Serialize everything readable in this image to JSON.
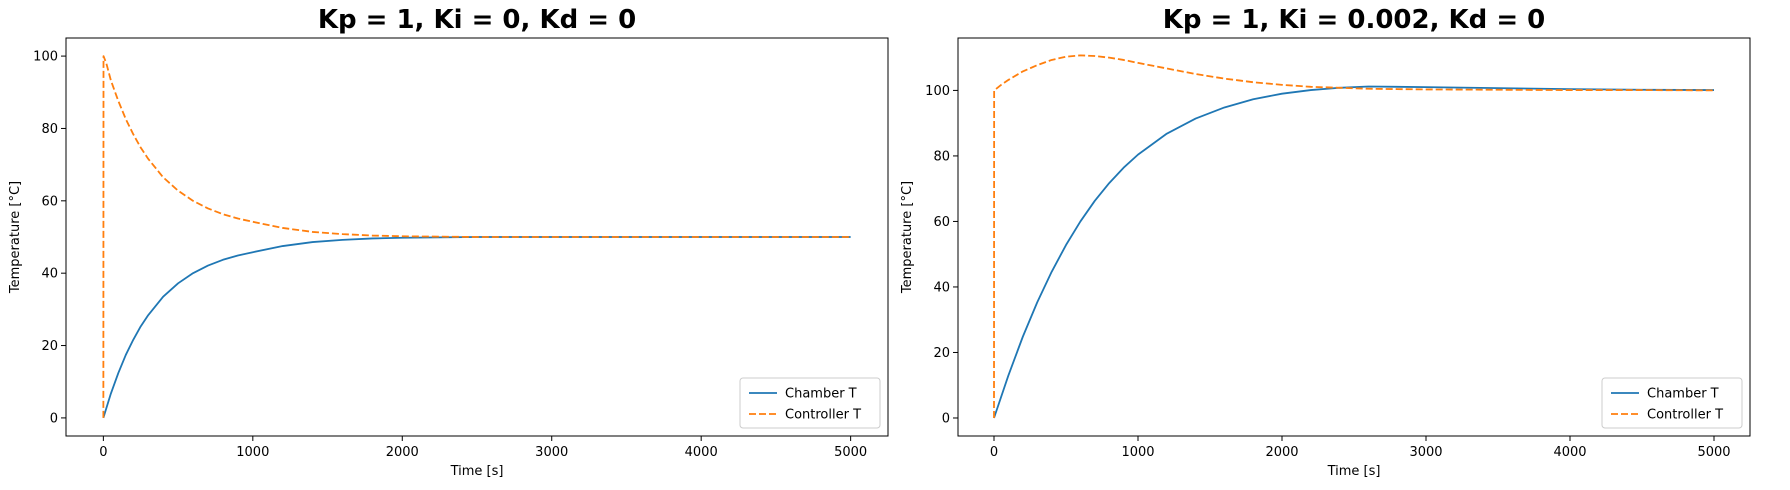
{
  "chart_data": [
    {
      "type": "line",
      "title": "Kp = 1, Ki = 0, Kd = 0",
      "xlabel": "Time [s]",
      "ylabel": "Temperature [°C]",
      "xlim": [
        -250,
        5250
      ],
      "ylim": [
        -5,
        105
      ],
      "xticks": [
        0,
        1000,
        2000,
        3000,
        4000,
        5000
      ],
      "yticks": [
        0,
        20,
        40,
        60,
        80,
        100
      ],
      "legend_position": "lower-right",
      "grid": false,
      "series": [
        {
          "name": "Chamber T",
          "color": "#1f77b4",
          "linestyle": "solid",
          "x": [
            0,
            50,
            100,
            150,
            200,
            250,
            300,
            400,
            500,
            600,
            700,
            800,
            900,
            1000,
            1200,
            1400,
            1600,
            1800,
            2000,
            2500,
            3000,
            3500,
            4000,
            4500,
            5000
          ],
          "y": [
            0,
            6.7,
            12.4,
            17.4,
            21.6,
            25.3,
            28.4,
            33.5,
            37.2,
            40.0,
            42.1,
            43.7,
            44.9,
            45.8,
            47.5,
            48.6,
            49.2,
            49.6,
            49.8,
            50.0,
            50.0,
            50.0,
            50.0,
            50.0,
            50.0
          ]
        },
        {
          "name": "Controller T",
          "color": "#ff7f0e",
          "linestyle": "dashed",
          "x": [
            0,
            1,
            20,
            50,
            100,
            150,
            200,
            250,
            300,
            400,
            500,
            600,
            700,
            800,
            900,
            1000,
            1200,
            1400,
            1600,
            1800,
            2000,
            2500,
            3000,
            3500,
            4000,
            4500,
            5000
          ],
          "y": [
            0,
            100,
            98.0,
            93.3,
            87.6,
            82.6,
            78.4,
            74.7,
            71.6,
            66.5,
            62.8,
            60.0,
            57.9,
            56.3,
            55.1,
            54.2,
            52.5,
            51.4,
            50.8,
            50.4,
            50.2,
            50.0,
            50.0,
            50.0,
            50.0,
            50.0,
            50.0
          ]
        }
      ]
    },
    {
      "type": "line",
      "title": "Kp = 1, Ki = 0.002, Kd = 0",
      "xlabel": "Time [s]",
      "ylabel": "Temperature [°C]",
      "xlim": [
        -250,
        5250
      ],
      "ylim": [
        -5.5,
        116
      ],
      "xticks": [
        0,
        1000,
        2000,
        3000,
        4000,
        5000
      ],
      "yticks": [
        0,
        20,
        40,
        60,
        80,
        100
      ],
      "legend_position": "lower-right",
      "grid": false,
      "series": [
        {
          "name": "Chamber T",
          "color": "#1f77b4",
          "linestyle": "solid",
          "x": [
            0,
            100,
            200,
            300,
            400,
            500,
            600,
            700,
            800,
            900,
            1000,
            1200,
            1400,
            1600,
            1800,
            2000,
            2200,
            2400,
            2600,
            3000,
            3500,
            4000,
            4500,
            5000
          ],
          "y": [
            0,
            13.0,
            24.8,
            35.3,
            44.6,
            52.8,
            60.0,
            66.3,
            71.7,
            76.4,
            80.4,
            86.8,
            91.4,
            94.8,
            97.3,
            99.0,
            100.1,
            100.8,
            101.2,
            101.0,
            100.7,
            100.4,
            100.2,
            100.1
          ]
        },
        {
          "name": "Controller T",
          "color": "#ff7f0e",
          "linestyle": "dashed",
          "x": [
            0,
            1,
            50,
            100,
            200,
            300,
            400,
            500,
            600,
            700,
            800,
            900,
            1000,
            1200,
            1400,
            1600,
            1800,
            2000,
            2200,
            2400,
            2600,
            3000,
            3500,
            4000,
            4500,
            5000
          ],
          "y": [
            0,
            100,
            101.7,
            103.2,
            105.8,
            107.7,
            109.3,
            110.3,
            110.7,
            110.5,
            110.0,
            109.3,
            108.4,
            106.7,
            105.0,
            103.6,
            102.5,
            101.7,
            101.1,
            100.8,
            100.5,
            100.3,
            100.2,
            100.1,
            100.1,
            100.0
          ]
        }
      ]
    }
  ]
}
